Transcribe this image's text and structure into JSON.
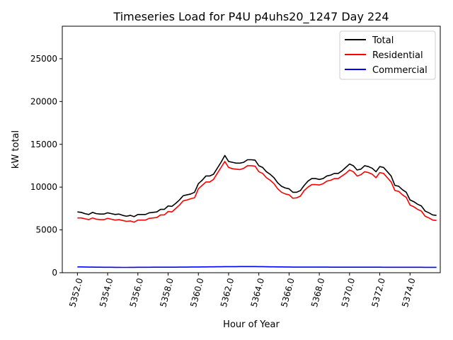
{
  "chart_data": {
    "type": "line",
    "title": "Timeseries Load for P4U p4uhs20_1247  Day 224",
    "xlabel": "Hour of Year",
    "ylabel": "kW total",
    "xlim": [
      5351.0,
      5376.0
    ],
    "ylim": [
      0,
      28800
    ],
    "x_ticks": [
      5352,
      5354,
      5356,
      5358,
      5360,
      5362,
      5364,
      5366,
      5368,
      5370,
      5372,
      5374
    ],
    "x_tick_labels": [
      "5352.0",
      "5354.0",
      "5356.0",
      "5358.0",
      "5360.0",
      "5362.0",
      "5364.0",
      "5366.0",
      "5368.0",
      "5370.0",
      "5372.0",
      "5374.0"
    ],
    "y_ticks": [
      0,
      5000,
      10000,
      15000,
      20000,
      25000
    ],
    "y_tick_labels": [
      "0",
      "5000",
      "10000",
      "15000",
      "20000",
      "25000"
    ],
    "grid": false,
    "legend_position": "top-right",
    "x_start": 5352.0,
    "x_step": 0.25,
    "series": [
      {
        "name": "Total",
        "color": "#000000",
        "values": [
          7100,
          7050,
          6900,
          6800,
          7050,
          6900,
          6850,
          6850,
          7000,
          6900,
          6800,
          6850,
          6700,
          6600,
          6700,
          6550,
          6800,
          6800,
          6800,
          7000,
          7050,
          7100,
          7400,
          7400,
          7800,
          7750,
          8100,
          8500,
          9000,
          9100,
          9200,
          9400,
          10400,
          10800,
          11300,
          11300,
          11500,
          12200,
          12900,
          13700,
          13000,
          12900,
          12800,
          12800,
          12900,
          13200,
          13200,
          13150,
          12500,
          12300,
          11800,
          11500,
          11100,
          10500,
          10100,
          9900,
          9800,
          9400,
          9400,
          9600,
          10200,
          10700,
          11000,
          11000,
          10900,
          11000,
          11300,
          11400,
          11600,
          11600,
          11900,
          12300,
          12700,
          12500,
          12000,
          12100,
          12500,
          12400,
          12200,
          11800,
          12400,
          12300,
          11800,
          11300,
          10200,
          10100,
          9700,
          9400,
          8500,
          8300,
          8000,
          7800,
          7200,
          7000,
          6750,
          6700
        ]
      },
      {
        "name": "Residential",
        "color": "#ff0000",
        "values": [
          6400,
          6400,
          6300,
          6200,
          6400,
          6250,
          6200,
          6200,
          6350,
          6250,
          6150,
          6200,
          6100,
          6000,
          6050,
          5900,
          6150,
          6150,
          6150,
          6350,
          6400,
          6450,
          6750,
          6750,
          7150,
          7100,
          7500,
          7900,
          8400,
          8500,
          8650,
          8750,
          9800,
          10200,
          10600,
          10600,
          10900,
          11600,
          12300,
          13000,
          12300,
          12150,
          12100,
          12050,
          12200,
          12500,
          12500,
          12450,
          11800,
          11600,
          11100,
          10800,
          10400,
          9800,
          9400,
          9200,
          9100,
          8700,
          8750,
          8950,
          9600,
          10000,
          10300,
          10300,
          10250,
          10400,
          10700,
          10800,
          11000,
          11000,
          11300,
          11600,
          12000,
          11800,
          11300,
          11450,
          11800,
          11700,
          11500,
          11100,
          11700,
          11600,
          11100,
          10600,
          9600,
          9500,
          9100,
          8800,
          7900,
          7700,
          7400,
          7200,
          6600,
          6400,
          6150,
          6100
        ]
      },
      {
        "name": "Commercial",
        "color": "#0000ff",
        "values": [
          680,
          680,
          670,
          660,
          660,
          650,
          650,
          640,
          640,
          640,
          630,
          630,
          620,
          620,
          630,
          630,
          640,
          640,
          640,
          640,
          650,
          650,
          650,
          650,
          650,
          650,
          650,
          660,
          660,
          660,
          670,
          670,
          670,
          680,
          680,
          690,
          690,
          700,
          700,
          710,
          710,
          710,
          710,
          720,
          720,
          720,
          720,
          720,
          710,
          710,
          700,
          690,
          690,
          680,
          680,
          670,
          670,
          660,
          660,
          660,
          660,
          660,
          660,
          660,
          660,
          660,
          660,
          650,
          650,
          650,
          650,
          650,
          650,
          650,
          650,
          650,
          650,
          650,
          650,
          650,
          650,
          640,
          640,
          640,
          640,
          640,
          640,
          640,
          640,
          640,
          640,
          640,
          630,
          630,
          630,
          630
        ]
      }
    ]
  }
}
